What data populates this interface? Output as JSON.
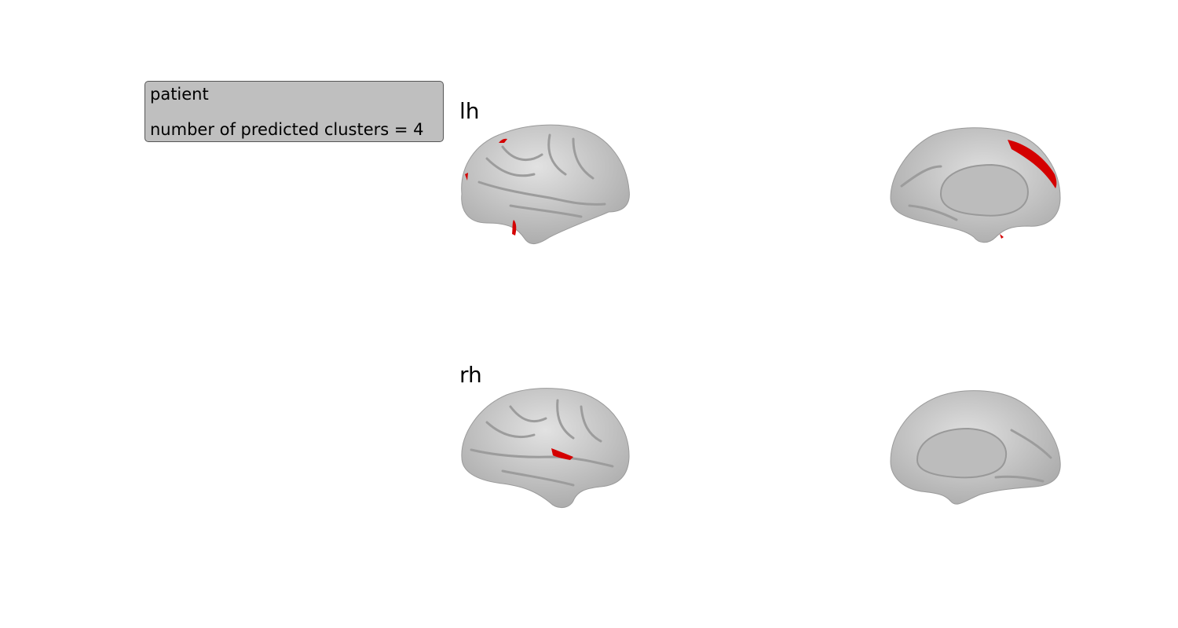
{
  "info": {
    "subject": "patient",
    "cluster_text": "number of predicted clusters = 4"
  },
  "hemispheres": [
    {
      "label": "lh",
      "views": [
        "lateral",
        "medial"
      ]
    },
    {
      "label": "rh",
      "views": [
        "lateral",
        "medial"
      ]
    }
  ],
  "colors": {
    "surface": "#cfcfcf",
    "sulcus": "#a8a8a8",
    "cluster": "#d40000",
    "box_bg": "#bfbfbf"
  }
}
